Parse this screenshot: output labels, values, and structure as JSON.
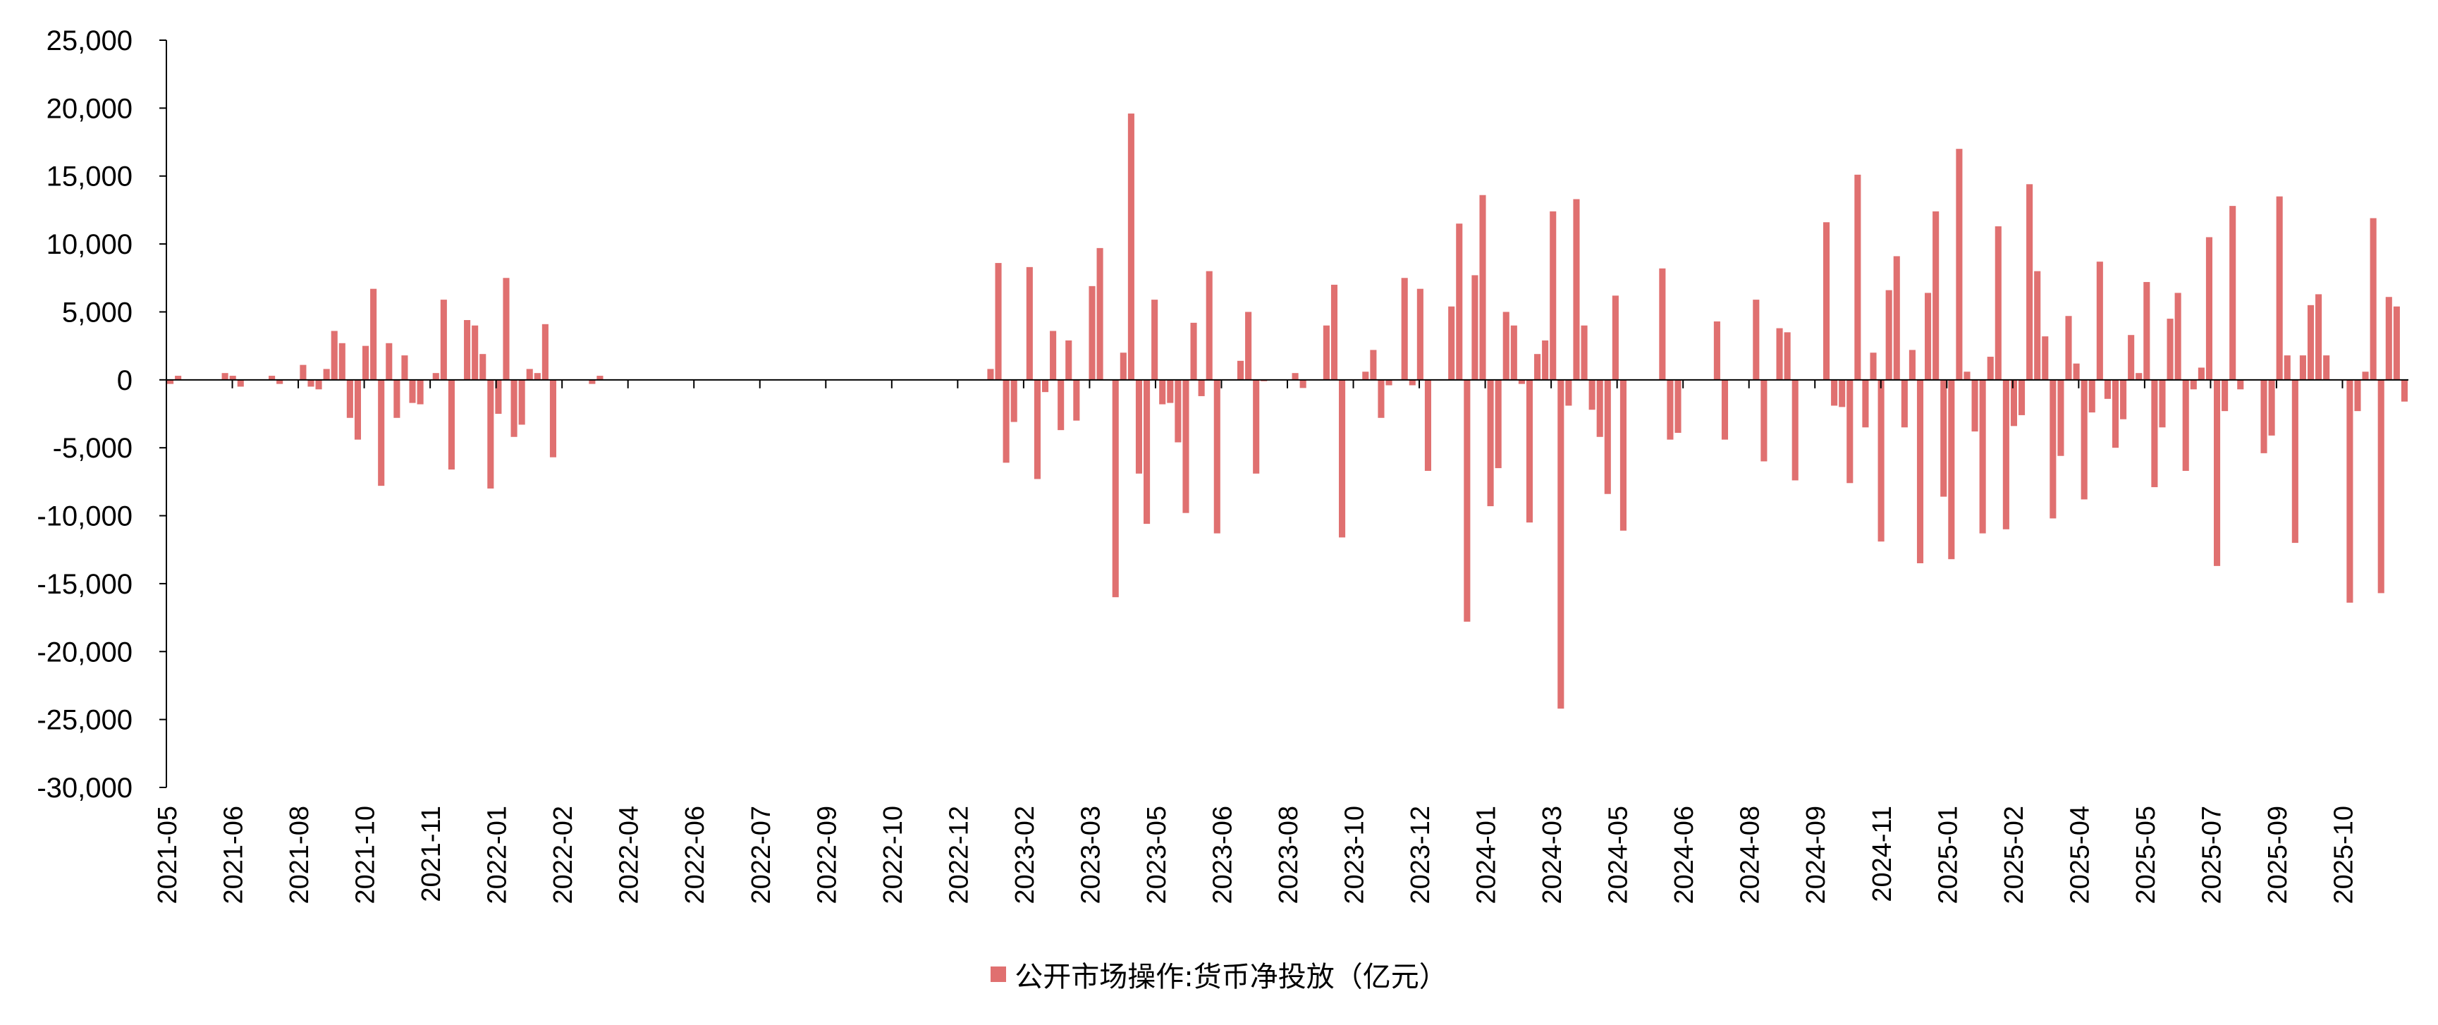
{
  "chart_data": {
    "type": "bar",
    "series": [
      {
        "name": "公开市场操作:货币净投放（亿元）",
        "color": "#e07070",
        "values": [
          -300,
          300,
          0,
          0,
          0,
          0,
          0,
          500,
          300,
          -500,
          0,
          0,
          0,
          300,
          -300,
          0,
          0,
          1100,
          -500,
          -700,
          800,
          3600,
          2700,
          -2800,
          -4400,
          2500,
          6700,
          -7800,
          2700,
          -2800,
          1800,
          -1700,
          -1800,
          0,
          500,
          5900,
          -6600,
          0,
          4400,
          4000,
          1900,
          -8000,
          -2500,
          7500,
          -4200,
          -3300,
          800,
          500,
          4100,
          -5700,
          0,
          0,
          0,
          0,
          -300,
          300,
          0,
          0,
          0,
          0,
          0,
          0,
          0,
          0,
          0,
          0,
          0,
          0,
          0,
          0,
          0,
          0,
          0,
          0,
          0,
          0,
          0,
          0,
          0,
          0,
          0,
          0,
          0,
          0,
          0,
          0,
          0,
          0,
          0,
          0,
          0,
          0,
          0,
          0,
          0,
          0,
          0,
          0,
          0,
          0,
          0,
          0,
          0,
          0,
          0,
          800,
          8600,
          -6100,
          -3100,
          0,
          8300,
          -7300,
          -900,
          3600,
          -3700,
          2900,
          -3000,
          0,
          6900,
          9700,
          0,
          -16000,
          2000,
          19600,
          -6900,
          -10600,
          5900,
          -1800,
          -1700,
          -4600,
          -9800,
          4200,
          -1200,
          8000,
          -11300,
          0,
          0,
          1400,
          5000,
          -6900,
          -100,
          0,
          0,
          0,
          500,
          -600,
          0,
          0,
          4000,
          7000,
          -11600,
          0,
          0,
          600,
          2200,
          -2800,
          -400,
          0,
          7500,
          -400,
          6700,
          -6700,
          0,
          0,
          5400,
          11500,
          -17800,
          7700,
          13600,
          -9300,
          -6500,
          5000,
          4000,
          -300,
          -10500,
          1900,
          2900,
          12400,
          -24200,
          -1900,
          13300,
          4000,
          -2200,
          -4200,
          -8400,
          6200,
          -11100,
          0,
          0,
          0,
          0,
          8200,
          -4400,
          -3900,
          0,
          0,
          0,
          0,
          4300,
          -4400,
          0,
          0,
          0,
          5900,
          -6000,
          0,
          3800,
          3500,
          -7400,
          0,
          0,
          0,
          11600,
          -1900,
          -2000,
          -7600,
          15100,
          -3500,
          2000,
          -11900,
          6600,
          9100,
          -3500,
          2200,
          -13500,
          6400,
          12400,
          -8600,
          -13200,
          17000,
          600,
          -3800,
          -11300,
          1700,
          11300,
          -11000,
          -3400,
          -2600,
          14400,
          8000,
          3200,
          -10200,
          -5600,
          4700,
          1200,
          -8800,
          -2400,
          8700,
          -1400,
          -5000,
          -2900,
          3300,
          500,
          7200,
          -7900,
          -3500,
          4500,
          6400,
          -6700,
          -700,
          900,
          10500,
          -13700,
          -2300,
          12800,
          -700,
          0,
          0,
          -5400,
          -4100,
          13500,
          1800,
          -12000,
          1800,
          5500,
          6300,
          1800,
          0,
          0,
          -16400,
          -2300,
          600,
          11900,
          -15700,
          6100,
          5400,
          -1600
        ]
      }
    ],
    "x_tick_labels": [
      "2021-05",
      "2021-06",
      "2021-08",
      "2021-10",
      "2021-11",
      "2022-01",
      "2022-02",
      "2022-04",
      "2022-06",
      "2022-07",
      "2022-09",
      "2022-10",
      "2022-12",
      "2023-02",
      "2023-03",
      "2023-05",
      "2023-06",
      "2023-08",
      "2023-10",
      "2023-12",
      "2024-01",
      "2024-03",
      "2024-05",
      "2024-06",
      "2024-08",
      "2024-09",
      "2024-11",
      "2025-01",
      "2025-02",
      "2025-04",
      "2025-05",
      "2025-07",
      "2025-09",
      "2025-10"
    ],
    "y_tick_labels": [
      "25,000",
      "20,000",
      "15,000",
      "10,000",
      "5,000",
      "0",
      "-5,000",
      "-10,000",
      "-15,000",
      "-20,000",
      "-25,000",
      "-30,000"
    ],
    "ylim": [
      -30000,
      25000
    ],
    "y_ticks": [
      25000,
      20000,
      15000,
      10000,
      5000,
      0,
      -5000,
      -10000,
      -15000,
      -20000,
      -25000,
      -30000
    ],
    "legend_position": "bottom-center",
    "grid": false
  },
  "legend": {
    "label": "公开市场操作:货币净投放（亿元）"
  }
}
